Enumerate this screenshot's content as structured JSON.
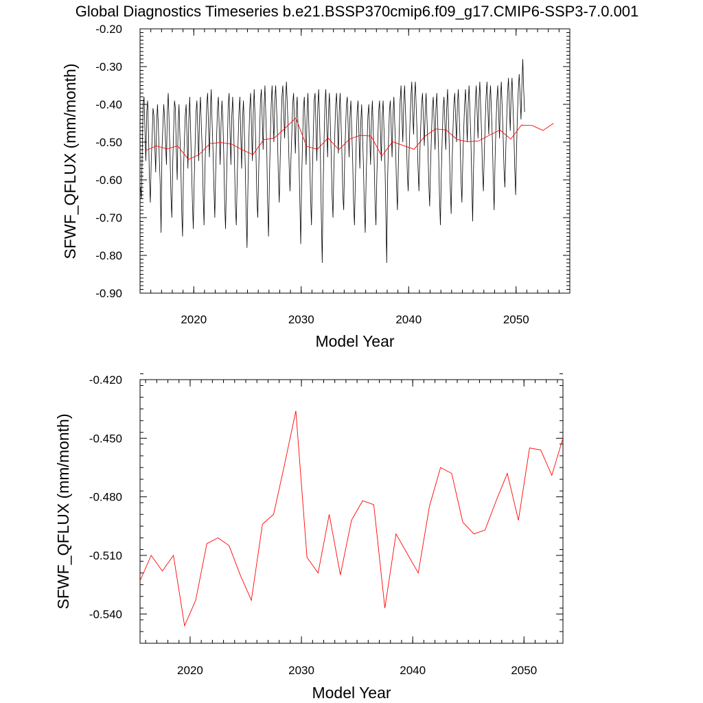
{
  "title": "Global Diagnostics Timeseries b.e21.BSSP370cmip6.f09_g17.CMIP6-SSP3-7.0.001",
  "chart_data": [
    {
      "type": "line",
      "xlabel": "Model Year",
      "ylabel": "SFWF_QFLUX (mm/month)",
      "xlim": [
        2015,
        2055
      ],
      "ylim": [
        -0.9,
        -0.2
      ],
      "xticks": [
        2020,
        2030,
        2040,
        2050
      ],
      "xtick_labels": [
        "2020",
        "2030",
        "2040",
        "2050"
      ],
      "yticks": [
        -0.2,
        -0.3,
        -0.4,
        -0.5,
        -0.6,
        -0.7,
        -0.8,
        -0.9
      ],
      "ytick_labels": [
        "-0.20",
        "-0.30",
        "-0.40",
        "-0.50",
        "-0.60",
        "-0.70",
        "-0.80",
        "-0.90"
      ],
      "series": [
        {
          "name": "",
          "color": "#000000",
          "note": "monthly",
          "start_year": 2015.04,
          "step": 0.0833333,
          "values": [
            -0.62,
            -0.65,
            -0.52,
            -0.4,
            -0.38,
            -0.47,
            -0.55,
            -0.42,
            -0.39,
            -0.48,
            -0.6,
            -0.66,
            -0.55,
            -0.49,
            -0.41,
            -0.43,
            -0.51,
            -0.58,
            -0.45,
            -0.4,
            -0.46,
            -0.54,
            -0.61,
            -0.74,
            -0.52,
            -0.46,
            -0.4,
            -0.44,
            -0.5,
            -0.56,
            -0.42,
            -0.37,
            -0.45,
            -0.53,
            -0.64,
            -0.7,
            -0.56,
            -0.47,
            -0.39,
            -0.41,
            -0.52,
            -0.6,
            -0.46,
            -0.4,
            -0.48,
            -0.55,
            -0.68,
            -0.75,
            -0.58,
            -0.5,
            -0.43,
            -0.4,
            -0.49,
            -0.57,
            -0.44,
            -0.38,
            -0.47,
            -0.56,
            -0.66,
            -0.73,
            -0.6,
            -0.51,
            -0.42,
            -0.39,
            -0.47,
            -0.55,
            -0.43,
            -0.38,
            -0.46,
            -0.52,
            -0.64,
            -0.72,
            -0.57,
            -0.48,
            -0.4,
            -0.37,
            -0.46,
            -0.54,
            -0.42,
            -0.36,
            -0.45,
            -0.52,
            -0.62,
            -0.7,
            -0.58,
            -0.49,
            -0.41,
            -0.38,
            -0.47,
            -0.56,
            -0.45,
            -0.39,
            -0.44,
            -0.53,
            -0.66,
            -0.73,
            -0.61,
            -0.51,
            -0.4,
            -0.37,
            -0.47,
            -0.56,
            -0.43,
            -0.38,
            -0.46,
            -0.55,
            -0.67,
            -0.72,
            -0.6,
            -0.5,
            -0.42,
            -0.38,
            -0.48,
            -0.57,
            -0.44,
            -0.39,
            -0.47,
            -0.56,
            -0.69,
            -0.78,
            -0.62,
            -0.5,
            -0.41,
            -0.37,
            -0.46,
            -0.55,
            -0.42,
            -0.36,
            -0.44,
            -0.53,
            -0.65,
            -0.7,
            -0.58,
            -0.48,
            -0.39,
            -0.36,
            -0.44,
            -0.52,
            -0.41,
            -0.35,
            -0.43,
            -0.51,
            -0.66,
            -0.75,
            -0.6,
            -0.49,
            -0.4,
            -0.35,
            -0.43,
            -0.5,
            -0.39,
            -0.35,
            -0.41,
            -0.48,
            -0.59,
            -0.66,
            -0.55,
            -0.46,
            -0.38,
            -0.35,
            -0.42,
            -0.49,
            -0.39,
            -0.34,
            -0.4,
            -0.47,
            -0.56,
            -0.63,
            -0.55,
            -0.48,
            -0.4,
            -0.37,
            -0.45,
            -0.53,
            -0.42,
            -0.38,
            -0.46,
            -0.54,
            -0.66,
            -0.77,
            -0.6,
            -0.5,
            -0.41,
            -0.38,
            -0.47,
            -0.56,
            -0.43,
            -0.37,
            -0.45,
            -0.54,
            -0.65,
            -0.72,
            -0.58,
            -0.48,
            -0.39,
            -0.37,
            -0.46,
            -0.55,
            -0.41,
            -0.36,
            -0.44,
            -0.54,
            -0.7,
            -0.82,
            -0.62,
            -0.5,
            -0.4,
            -0.36,
            -0.45,
            -0.54,
            -0.42,
            -0.37,
            -0.45,
            -0.53,
            -0.64,
            -0.7,
            -0.57,
            -0.48,
            -0.4,
            -0.37,
            -0.45,
            -0.53,
            -0.42,
            -0.37,
            -0.45,
            -0.53,
            -0.64,
            -0.68,
            -0.55,
            -0.47,
            -0.4,
            -0.38,
            -0.46,
            -0.54,
            -0.43,
            -0.39,
            -0.47,
            -0.55,
            -0.66,
            -0.72,
            -0.6,
            -0.5,
            -0.42,
            -0.39,
            -0.48,
            -0.57,
            -0.45,
            -0.4,
            -0.48,
            -0.56,
            -0.67,
            -0.74,
            -0.6,
            -0.51,
            -0.43,
            -0.4,
            -0.48,
            -0.56,
            -0.44,
            -0.39,
            -0.47,
            -0.55,
            -0.66,
            -0.72,
            -0.59,
            -0.5,
            -0.42,
            -0.39,
            -0.47,
            -0.55,
            -0.43,
            -0.39,
            -0.47,
            -0.55,
            -0.68,
            -0.82,
            -0.6,
            -0.5,
            -0.42,
            -0.39,
            -0.46,
            -0.54,
            -0.43,
            -0.38,
            -0.45,
            -0.52,
            -0.62,
            -0.68,
            -0.56,
            -0.47,
            -0.39,
            -0.35,
            -0.43,
            -0.5,
            -0.4,
            -0.35,
            -0.42,
            -0.49,
            -0.58,
            -0.63,
            -0.53,
            -0.45,
            -0.38,
            -0.34,
            -0.42,
            -0.48,
            -0.38,
            -0.34,
            -0.41,
            -0.48,
            -0.57,
            -0.63,
            -0.53,
            -0.46,
            -0.4,
            -0.37,
            -0.44,
            -0.51,
            -0.42,
            -0.37,
            -0.44,
            -0.51,
            -0.61,
            -0.67,
            -0.56,
            -0.48,
            -0.41,
            -0.38,
            -0.45,
            -0.52,
            -0.41,
            -0.37,
            -0.45,
            -0.53,
            -0.65,
            -0.72,
            -0.58,
            -0.49,
            -0.41,
            -0.38,
            -0.45,
            -0.52,
            -0.41,
            -0.36,
            -0.44,
            -0.52,
            -0.62,
            -0.69,
            -0.56,
            -0.47,
            -0.4,
            -0.37,
            -0.44,
            -0.5,
            -0.4,
            -0.36,
            -0.43,
            -0.5,
            -0.6,
            -0.66,
            -0.55,
            -0.47,
            -0.4,
            -0.36,
            -0.43,
            -0.5,
            -0.4,
            -0.35,
            -0.42,
            -0.49,
            -0.6,
            -0.71,
            -0.57,
            -0.47,
            -0.39,
            -0.35,
            -0.42,
            -0.49,
            -0.39,
            -0.34,
            -0.41,
            -0.48,
            -0.58,
            -0.63,
            -0.53,
            -0.45,
            -0.38,
            -0.34,
            -0.41,
            -0.48,
            -0.39,
            -0.35,
            -0.42,
            -0.49,
            -0.6,
            -0.68,
            -0.55,
            -0.46,
            -0.39,
            -0.35,
            -0.42,
            -0.49,
            -0.39,
            -0.34,
            -0.41,
            -0.48,
            -0.57,
            -0.62,
            -0.52,
            -0.44,
            -0.37,
            -0.33,
            -0.4,
            -0.47,
            -0.37,
            -0.33,
            -0.4,
            -0.47,
            -0.57,
            -0.64,
            -0.52,
            -0.43,
            -0.36,
            -0.32,
            -0.38,
            -0.44,
            -0.35,
            -0.28,
            -0.36,
            -0.42
          ]
        },
        {
          "name": "",
          "color": "#ff0000",
          "note": "annual",
          "x": [
            2015.5,
            2016.5,
            2017.5,
            2018.5,
            2019.5,
            2020.5,
            2021.5,
            2022.5,
            2023.5,
            2024.5,
            2025.5,
            2026.5,
            2027.5,
            2028.5,
            2029.5,
            2030.5,
            2031.5,
            2032.5,
            2033.5,
            2034.5,
            2035.5,
            2036.5,
            2037.5,
            2038.5,
            2039.5,
            2040.5,
            2041.5,
            2042.5,
            2043.5,
            2044.5,
            2045.5,
            2046.5,
            2047.5,
            2048.5,
            2049.5,
            2050.5,
            2051.5,
            2052.5,
            2053.5
          ],
          "values": [
            -0.523,
            -0.51,
            -0.518,
            -0.51,
            -0.546,
            -0.533,
            -0.504,
            -0.501,
            -0.505,
            -0.52,
            -0.533,
            -0.494,
            -0.489,
            -0.463,
            -0.436,
            -0.511,
            -0.519,
            -0.489,
            -0.52,
            -0.492,
            -0.482,
            -0.484,
            -0.537,
            -0.499,
            -0.509,
            -0.519,
            -0.485,
            -0.465,
            -0.468,
            -0.493,
            -0.499,
            -0.497,
            -0.482,
            -0.468,
            -0.492,
            -0.455,
            -0.456,
            -0.469,
            -0.45
          ]
        }
      ]
    },
    {
      "type": "line",
      "xlabel": "Model Year",
      "ylabel": "SFWF_QFLUX (mm/month)",
      "xlim": [
        2015.5,
        2053.5
      ],
      "ylim": [
        -0.555,
        -0.42
      ],
      "xticks": [
        2020,
        2030,
        2040,
        2050
      ],
      "xtick_labels": [
        "2020",
        "2030",
        "2040",
        "2050"
      ],
      "yticks": [
        -0.42,
        -0.45,
        -0.48,
        -0.51,
        -0.54
      ],
      "ytick_labels": [
        "-0.420",
        "-0.450",
        "-0.480",
        "-0.510",
        "-0.540"
      ],
      "series": [
        {
          "name": "",
          "color": "#ff0000",
          "note": "annual",
          "x": [
            2015.5,
            2016.5,
            2017.5,
            2018.5,
            2019.5,
            2020.5,
            2021.5,
            2022.5,
            2023.5,
            2024.5,
            2025.5,
            2026.5,
            2027.5,
            2028.5,
            2029.5,
            2030.5,
            2031.5,
            2032.5,
            2033.5,
            2034.5,
            2035.5,
            2036.5,
            2037.5,
            2038.5,
            2039.5,
            2040.5,
            2041.5,
            2042.5,
            2043.5,
            2044.5,
            2045.5,
            2046.5,
            2047.5,
            2048.5,
            2049.5,
            2050.5,
            2051.5,
            2052.5,
            2053.5
          ],
          "values": [
            -0.523,
            -0.51,
            -0.518,
            -0.51,
            -0.546,
            -0.533,
            -0.504,
            -0.501,
            -0.505,
            -0.52,
            -0.533,
            -0.494,
            -0.489,
            -0.463,
            -0.436,
            -0.511,
            -0.519,
            -0.489,
            -0.52,
            -0.492,
            -0.482,
            -0.484,
            -0.537,
            -0.499,
            -0.509,
            -0.519,
            -0.485,
            -0.465,
            -0.468,
            -0.493,
            -0.499,
            -0.497,
            -0.482,
            -0.468,
            -0.492,
            -0.455,
            -0.456,
            -0.469,
            -0.45
          ]
        }
      ]
    }
  ]
}
